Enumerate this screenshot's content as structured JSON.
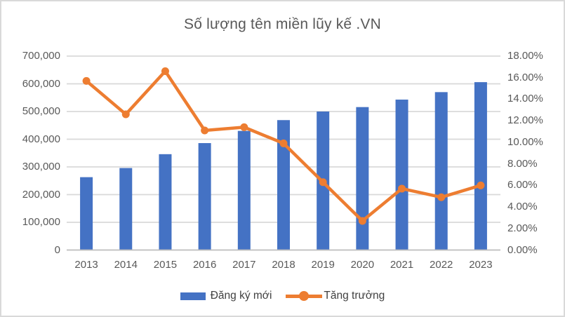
{
  "title": "Số lượng tên miền lũy kế .VN",
  "chart_data": {
    "type": "bar",
    "subtype": "combo-bar-line",
    "title": "Số lượng tên miền lũy kế .VN",
    "categories": [
      "2013",
      "2014",
      "2015",
      "2016",
      "2017",
      "2018",
      "2019",
      "2020",
      "2021",
      "2022",
      "2023"
    ],
    "series": [
      {
        "name": "Đăng ký mới",
        "type": "bar",
        "axis": "left",
        "color": "#4472C4",
        "values": [
          263000,
          296000,
          346000,
          386000,
          430000,
          469000,
          500000,
          516000,
          543000,
          570000,
          606000
        ]
      },
      {
        "name": "Tăng trưởng",
        "type": "line",
        "axis": "right",
        "unit": "%",
        "color": "#ED7D31",
        "values": [
          15.7,
          12.6,
          16.6,
          11.1,
          11.4,
          9.9,
          6.3,
          2.7,
          5.7,
          4.9,
          6.0
        ]
      }
    ],
    "left_axis": {
      "min": 0,
      "max": 700000,
      "tick_labels": [
        "0",
        "100,000",
        "200,000",
        "300,000",
        "400,000",
        "500,000",
        "600,000",
        "700,000"
      ]
    },
    "right_axis": {
      "min": 0,
      "max": 18,
      "tick_labels": [
        "0.00%",
        "2.00%",
        "4.00%",
        "6.00%",
        "8.00%",
        "10.00%",
        "12.00%",
        "14.00%",
        "16.00%",
        "18.00%"
      ]
    },
    "grid": true,
    "legend_position": "bottom"
  },
  "colors": {
    "bar": "#4472C4",
    "line": "#ED7D31",
    "gridline": "#D9D9D9",
    "axis_line": "#BFBFBF",
    "text": "#595959",
    "frame_border": "#D9D9D9"
  }
}
